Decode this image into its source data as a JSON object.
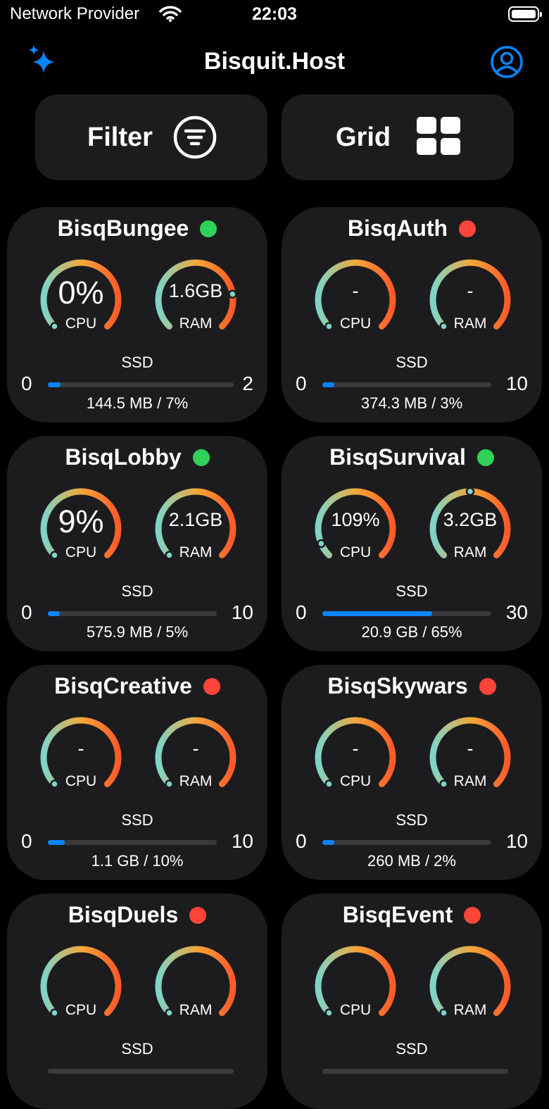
{
  "status_bar": {
    "carrier": "Network Provider",
    "time": "22:03"
  },
  "nav": {
    "title": "Bisquit.Host"
  },
  "toolbar": {
    "filter_label": "Filter",
    "grid_label": "Grid"
  },
  "colors": {
    "online": "#30d158",
    "offline": "#ff453a",
    "accent": "#0a84ff",
    "card": "#1c1c1e"
  },
  "labels": {
    "cpu": "CPU",
    "ram": "RAM",
    "ssd": "SSD"
  },
  "servers": [
    {
      "name": "BisqBungee",
      "status": "online",
      "cpu": "0%",
      "cpu_level": 0,
      "ram": "1.6GB",
      "ram_level": 0.8,
      "ssd_min": "0",
      "ssd_max": "2",
      "ssd_usage": "144.5 MB / 7%",
      "ssd_fraction": 0.07
    },
    {
      "name": "BisqAuth",
      "status": "offline",
      "cpu": "-",
      "cpu_level": 0,
      "ram": "-",
      "ram_level": 0,
      "ssd_min": "0",
      "ssd_max": "10",
      "ssd_usage": "374.3 MB / 3%",
      "ssd_fraction": 0.07
    },
    {
      "name": "BisqLobby",
      "status": "online",
      "cpu": "9%",
      "cpu_level": 0,
      "ram": "2.1GB",
      "ram_level": 0,
      "ssd_min": "0",
      "ssd_max": "10",
      "ssd_usage": "575.9 MB / 5%",
      "ssd_fraction": 0.07
    },
    {
      "name": "BisqSurvival",
      "status": "online",
      "cpu": "109%",
      "cpu_level": 0.08,
      "ram": "3.2GB",
      "ram_level": 0.5,
      "ssd_min": "0",
      "ssd_max": "30",
      "ssd_usage": "20.9 GB / 65%",
      "ssd_fraction": 0.65
    },
    {
      "name": "BisqCreative",
      "status": "offline",
      "cpu": "-",
      "cpu_level": 0,
      "ram": "-",
      "ram_level": 0,
      "ssd_min": "0",
      "ssd_max": "10",
      "ssd_usage": "1.1 GB / 10%",
      "ssd_fraction": 0.1
    },
    {
      "name": "BisqSkywars",
      "status": "offline",
      "cpu": "-",
      "cpu_level": 0,
      "ram": "-",
      "ram_level": 0,
      "ssd_min": "0",
      "ssd_max": "10",
      "ssd_usage": "260 MB / 2%",
      "ssd_fraction": 0.07
    },
    {
      "name": "BisqDuels",
      "status": "offline",
      "cpu": "",
      "cpu_level": 0,
      "ram": "",
      "ram_level": 0,
      "ssd_min": "",
      "ssd_max": "",
      "ssd_usage": "",
      "ssd_fraction": 0
    },
    {
      "name": "BisqEvent",
      "status": "offline",
      "cpu": "",
      "cpu_level": 0,
      "ram": "",
      "ram_level": 0,
      "ssd_min": "",
      "ssd_max": "",
      "ssd_usage": "",
      "ssd_fraction": 0
    }
  ]
}
